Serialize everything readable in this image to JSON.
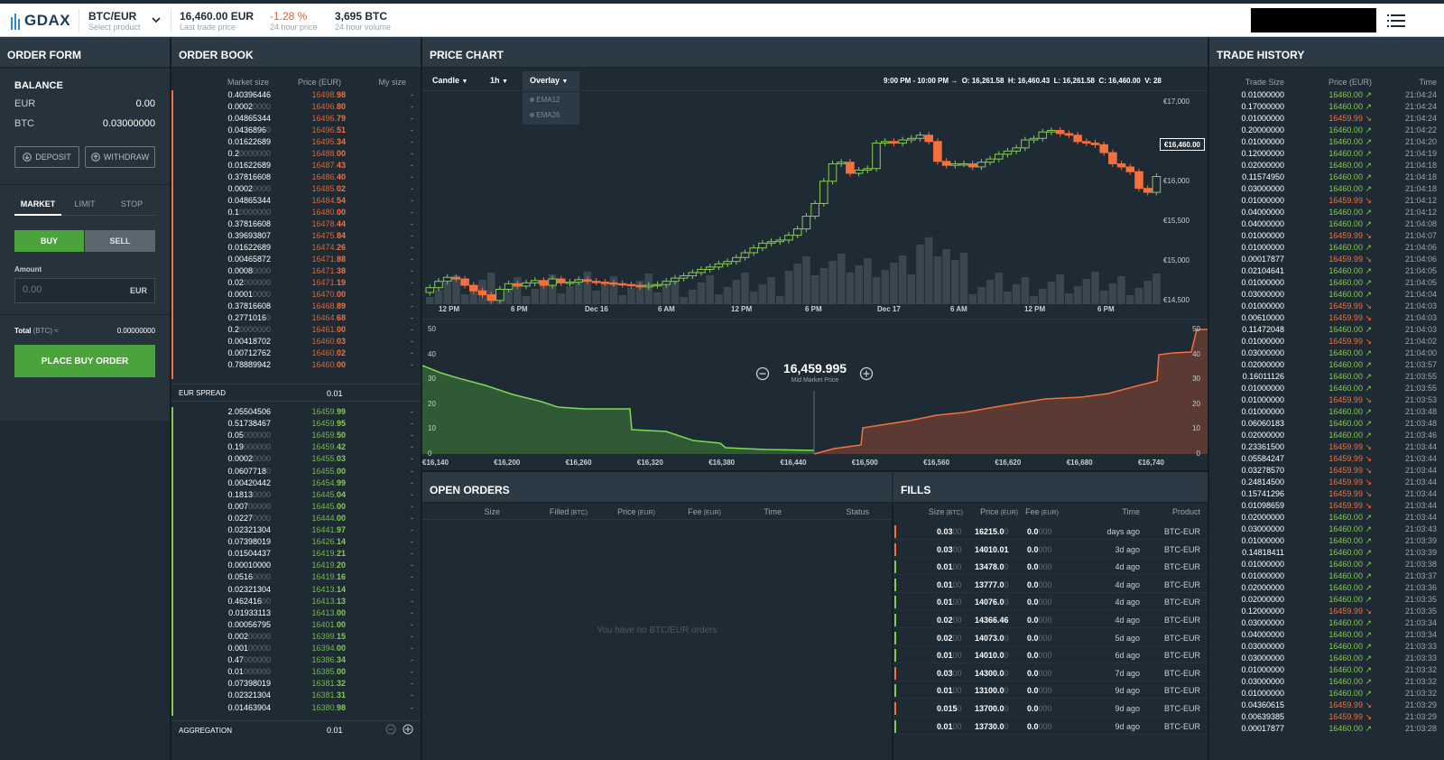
{
  "app": {
    "logo": "GDAX"
  },
  "header": {
    "product": "BTC/EUR",
    "product_sub": "Select product",
    "last_price": "16,460.00 EUR",
    "last_price_sub": "Last trade price",
    "change": "-1.28 %",
    "change_sub": "24 hour price",
    "volume": "3,695 BTC",
    "volume_sub": "24 hour volume"
  },
  "order_form": {
    "title": "ORDER FORM",
    "balance_title": "BALANCE",
    "balances": [
      {
        "cur": "EUR",
        "amt": "0.00"
      },
      {
        "cur": "BTC",
        "amt": "0.03000000"
      }
    ],
    "deposit": "DEPOSIT",
    "withdraw": "WITHDRAW",
    "tabs": [
      "MARKET",
      "LIMIT",
      "STOP"
    ],
    "buy": "BUY",
    "sell": "SELL",
    "amount_label": "Amount",
    "amount_placeholder": "0.00",
    "amount_unit": "EUR",
    "total_label": "Total",
    "total_unit": "(BTC) ≈",
    "total_value": "0.00000000",
    "place": "PLACE BUY ORDER"
  },
  "order_book": {
    "title": "ORDER BOOK",
    "cols": [
      "Market size",
      "Price (EUR)",
      "My size"
    ],
    "asks": [
      [
        "0.40396446",
        "16498.98"
      ],
      [
        "0.0002",
        "16496.80"
      ],
      [
        "0.04865344",
        "16496.79"
      ],
      [
        "0.0436896",
        "16496.51"
      ],
      [
        "0.01622689",
        "16495.34"
      ],
      [
        "0.2",
        "16488.00"
      ],
      [
        "0.01622689",
        "16487.43"
      ],
      [
        "0.37816608",
        "16486.40"
      ],
      [
        "0.0002",
        "16485.02"
      ],
      [
        "0.04865344",
        "16484.54"
      ],
      [
        "0.1",
        "16480.00"
      ],
      [
        "0.37816608",
        "16478.44"
      ],
      [
        "0.39693807",
        "16475.84"
      ],
      [
        "0.01622689",
        "16474.26"
      ],
      [
        "0.00465872",
        "16471.88"
      ],
      [
        "0.0008",
        "16471.38"
      ],
      [
        "0.02",
        "16471.19"
      ],
      [
        "0.0001",
        "16470.00"
      ],
      [
        "0.37816608",
        "16468.89"
      ],
      [
        "0.2771016",
        "16464.68"
      ],
      [
        "0.2",
        "16461.00"
      ],
      [
        "0.00418702",
        "16460.03"
      ],
      [
        "0.00712762",
        "16460.02"
      ],
      [
        "0.78889942",
        "16460.00"
      ]
    ],
    "spread_label": "EUR SPREAD",
    "spread_value": "0.01",
    "bids": [
      [
        "2.05504506",
        "16459.99"
      ],
      [
        "0.51738467",
        "16459.95"
      ],
      [
        "0.05",
        "16459.50"
      ],
      [
        "0.19",
        "16459.42"
      ],
      [
        "0.0002",
        "16455.03"
      ],
      [
        "0.0607718",
        "16455.00"
      ],
      [
        "0.00420442",
        "16454.99"
      ],
      [
        "0.1813",
        "16445.04"
      ],
      [
        "0.007",
        "16445.00"
      ],
      [
        "0.0227",
        "16444.00"
      ],
      [
        "0.02321304",
        "16441.97"
      ],
      [
        "0.07398019",
        "16426.14"
      ],
      [
        "0.01504437",
        "16419.21"
      ],
      [
        "0.00010000",
        "16419.20"
      ],
      [
        "0.0516",
        "16419.16"
      ],
      [
        "0.02321304",
        "16413.14"
      ],
      [
        "0.462416",
        "16413.13"
      ],
      [
        "0.01933113",
        "16413.00"
      ],
      [
        "0.00056795",
        "16401.00"
      ],
      [
        "0.002",
        "16399.15"
      ],
      [
        "0.001",
        "16394.00"
      ],
      [
        "0.47",
        "16386.34"
      ],
      [
        "0.01",
        "16385.00"
      ],
      [
        "0.07398019",
        "16381.32"
      ],
      [
        "0.02321304",
        "16381.31"
      ],
      [
        "0.01463904",
        "16380.98"
      ]
    ],
    "my_size": "-",
    "aggregation_label": "AGGREGATION",
    "aggregation_value": "0.01"
  },
  "price_chart": {
    "title": "PRICE CHART",
    "candle_label": "Candle",
    "interval_label": "1h",
    "overlay_label": "Overlay",
    "overlay_options": [
      "EMA12",
      "EMA26"
    ],
    "ohlc_time": "9:00 PM - 10:00 PM →",
    "ohlc": [
      {
        "k": "O:",
        "v": "16,261.58"
      },
      {
        "k": "H:",
        "v": "16,460.43"
      },
      {
        "k": "L:",
        "v": "16,261.58"
      },
      {
        "k": "C:",
        "v": "16,460.00"
      },
      {
        "k": "V:",
        "v": "28"
      }
    ],
    "price_ticks": [
      "€17,000",
      "€16,000",
      "€15,500",
      "€15,000",
      "€14,500"
    ],
    "price_tag": "€16,460.00",
    "time_ticks": [
      "12 PM",
      "6 PM",
      "Dec 16",
      "6 AM",
      "12 PM",
      "6 PM",
      "Dec 17",
      "6 AM",
      "12 PM",
      "6 PM"
    ],
    "mid_price": "16,459.995",
    "mid_label": "Mid Market Price",
    "depth_left_ticks": [
      "50",
      "40",
      "30",
      "20",
      "10",
      "0"
    ],
    "depth_right_ticks": [
      "50",
      "40",
      "30",
      "20",
      "10",
      "0"
    ],
    "depth_x_ticks": [
      "€16,140",
      "€16,200",
      "€16,260",
      "€16,320",
      "€16,380",
      "€16,440",
      "€16,500",
      "€16,560",
      "€16,620",
      "€16,680",
      "€16,740"
    ]
  },
  "open_orders": {
    "title": "OPEN ORDERS",
    "cols": [
      {
        "t": "Size",
        "u": ""
      },
      {
        "t": "Filled",
        "u": "(BTC)"
      },
      {
        "t": "Price",
        "u": "(EUR)"
      },
      {
        "t": "Fee",
        "u": "(EUR)"
      },
      {
        "t": "Time",
        "u": ""
      },
      {
        "t": "Status",
        "u": ""
      }
    ],
    "empty": "You have no BTC/EUR orders"
  },
  "fills": {
    "title": "FILLS",
    "cols": [
      {
        "t": "Size",
        "u": "(BTC)"
      },
      {
        "t": "Price",
        "u": "(EUR)"
      },
      {
        "t": "Fee",
        "u": "(EUR)"
      },
      {
        "t": "Time",
        "u": ""
      },
      {
        "t": "Product",
        "u": ""
      }
    ],
    "rows": [
      {
        "side": "sell",
        "size": "0.03",
        "size_pad": "00",
        "price": "16215.0",
        "price_pad": "0",
        "fee": "0.0",
        "fee_pad": "000",
        "time": "days ago",
        "product": "BTC-EUR"
      },
      {
        "side": "sell",
        "size": "0.03",
        "size_pad": "00",
        "price": "14010.01",
        "price_pad": "",
        "fee": "0.0",
        "fee_pad": "000",
        "time": "3d ago",
        "product": "BTC-EUR"
      },
      {
        "side": "buy",
        "size": "0.01",
        "size_pad": "00",
        "price": "13478.0",
        "price_pad": "0",
        "fee": "0.0",
        "fee_pad": "000",
        "time": "4d ago",
        "product": "BTC-EUR"
      },
      {
        "side": "buy",
        "size": "0.01",
        "size_pad": "00",
        "price": "13777.0",
        "price_pad": "0",
        "fee": "0.0",
        "fee_pad": "000",
        "time": "4d ago",
        "product": "BTC-EUR"
      },
      {
        "side": "buy",
        "size": "0.01",
        "size_pad": "00",
        "price": "14076.0",
        "price_pad": "0",
        "fee": "0.0",
        "fee_pad": "000",
        "time": "4d ago",
        "product": "BTC-EUR"
      },
      {
        "side": "buy",
        "size": "0.02",
        "size_pad": "00",
        "price": "14366.46",
        "price_pad": "",
        "fee": "0.0",
        "fee_pad": "000",
        "time": "4d ago",
        "product": "BTC-EUR"
      },
      {
        "side": "buy",
        "size": "0.02",
        "size_pad": "00",
        "price": "14073.0",
        "price_pad": "0",
        "fee": "0.0",
        "fee_pad": "000",
        "time": "5d ago",
        "product": "BTC-EUR"
      },
      {
        "side": "buy",
        "size": "0.01",
        "size_pad": "00",
        "price": "14010.0",
        "price_pad": "0",
        "fee": "0.0",
        "fee_pad": "000",
        "time": "6d ago",
        "product": "BTC-EUR"
      },
      {
        "side": "sell",
        "size": "0.03",
        "size_pad": "00",
        "price": "14300.0",
        "price_pad": "0",
        "fee": "0.0",
        "fee_pad": "000",
        "time": "7d ago",
        "product": "BTC-EUR"
      },
      {
        "side": "buy",
        "size": "0.01",
        "size_pad": "00",
        "price": "13100.0",
        "price_pad": "0",
        "fee": "0.0",
        "fee_pad": "000",
        "time": "9d ago",
        "product": "BTC-EUR"
      },
      {
        "side": "sell",
        "size": "0.015",
        "size_pad": "0",
        "price": "13700.0",
        "price_pad": "0",
        "fee": "0.0",
        "fee_pad": "000",
        "time": "9d ago",
        "product": "BTC-EUR"
      },
      {
        "side": "buy",
        "size": "0.01",
        "size_pad": "00",
        "price": "13730.0",
        "price_pad": "0",
        "fee": "0.0",
        "fee_pad": "000",
        "time": "9d ago",
        "product": "BTC-EUR"
      }
    ]
  },
  "trade_history": {
    "title": "TRADE HISTORY",
    "cols": [
      "Trade Size",
      "Price (EUR)",
      "Time"
    ],
    "rows": [
      [
        "0.01000000",
        "16460.00",
        "up",
        "21:04:24"
      ],
      [
        "0.17000000",
        "16460.00",
        "up",
        "21:04:24"
      ],
      [
        "0.01000000",
        "16459.99",
        "down",
        "21:04:24"
      ],
      [
        "0.20000000",
        "16460.00",
        "up",
        "21:04:22"
      ],
      [
        "0.01000000",
        "16460.00",
        "up",
        "21:04:20"
      ],
      [
        "0.12000000",
        "16460.00",
        "up",
        "21:04:19"
      ],
      [
        "0.02000000",
        "16460.00",
        "up",
        "21:04:18"
      ],
      [
        "0.11574950",
        "16460.00",
        "up",
        "21:04:18"
      ],
      [
        "0.03000000",
        "16460.00",
        "up",
        "21:04:18"
      ],
      [
        "0.01000000",
        "16459.99",
        "down",
        "21:04:12"
      ],
      [
        "0.04000000",
        "16460.00",
        "up",
        "21:04:12"
      ],
      [
        "0.04000000",
        "16460.00",
        "up",
        "21:04:08"
      ],
      [
        "0.01000000",
        "16459.99",
        "down",
        "21:04:07"
      ],
      [
        "0.01000000",
        "16460.00",
        "up",
        "21:04:06"
      ],
      [
        "0.00017877",
        "16459.99",
        "down",
        "21:04:06"
      ],
      [
        "0.02104641",
        "16460.00",
        "up",
        "21:04:05"
      ],
      [
        "0.01000000",
        "16460.00",
        "up",
        "21:04:05"
      ],
      [
        "0.03000000",
        "16460.00",
        "up",
        "21:04:04"
      ],
      [
        "0.01000000",
        "16459.99",
        "down",
        "21:04:03"
      ],
      [
        "0.00610000",
        "16459.99",
        "down",
        "21:04:03"
      ],
      [
        "0.11472048",
        "16460.00",
        "up",
        "21:04:03"
      ],
      [
        "0.01000000",
        "16459.99",
        "down",
        "21:04:02"
      ],
      [
        "0.03000000",
        "16460.00",
        "up",
        "21:04:00"
      ],
      [
        "0.02000000",
        "16460.00",
        "up",
        "21:03:57"
      ],
      [
        "0.16011126",
        "16460.00",
        "up",
        "21:03:55"
      ],
      [
        "0.01000000",
        "16460.00",
        "up",
        "21:03:55"
      ],
      [
        "0.01000000",
        "16459.99",
        "down",
        "21:03:53"
      ],
      [
        "0.01000000",
        "16460.00",
        "up",
        "21:03:48"
      ],
      [
        "0.06060183",
        "16460.00",
        "up",
        "21:03:48"
      ],
      [
        "0.02000000",
        "16460.00",
        "up",
        "21:03:46"
      ],
      [
        "0.23361500",
        "16459.99",
        "down",
        "21:03:44"
      ],
      [
        "0.05584247",
        "16459.99",
        "down",
        "21:03:44"
      ],
      [
        "0.03278570",
        "16459.99",
        "down",
        "21:03:44"
      ],
      [
        "0.24814500",
        "16459.99",
        "down",
        "21:03:44"
      ],
      [
        "0.15741296",
        "16459.99",
        "down",
        "21:03:44"
      ],
      [
        "0.01098659",
        "16459.99",
        "down",
        "21:03:44"
      ],
      [
        "0.02000000",
        "16460.00",
        "up",
        "21:03:44"
      ],
      [
        "0.03000000",
        "16460.00",
        "up",
        "21:03:43"
      ],
      [
        "0.01000000",
        "16460.00",
        "up",
        "21:03:39"
      ],
      [
        "0.14818411",
        "16460.00",
        "up",
        "21:03:39"
      ],
      [
        "0.01000000",
        "16460.00",
        "up",
        "21:03:38"
      ],
      [
        "0.01000000",
        "16460.00",
        "up",
        "21:03:37"
      ],
      [
        "0.02000000",
        "16460.00",
        "up",
        "21:03:36"
      ],
      [
        "0.02000000",
        "16460.00",
        "up",
        "21:03:35"
      ],
      [
        "0.12000000",
        "16459.99",
        "down",
        "21:03:35"
      ],
      [
        "0.03000000",
        "16460.00",
        "up",
        "21:03:34"
      ],
      [
        "0.04000000",
        "16460.00",
        "up",
        "21:03:34"
      ],
      [
        "0.03000000",
        "16460.00",
        "up",
        "21:03:33"
      ],
      [
        "0.03000000",
        "16460.00",
        "up",
        "21:03:33"
      ],
      [
        "0.01000000",
        "16460.00",
        "up",
        "21:03:32"
      ],
      [
        "0.03000000",
        "16460.00",
        "up",
        "21:03:32"
      ],
      [
        "0.01000000",
        "16460.00",
        "up",
        "21:03:32"
      ],
      [
        "0.04360615",
        "16459.99",
        "down",
        "21:03:29"
      ],
      [
        "0.00639385",
        "16459.99",
        "down",
        "21:03:29"
      ],
      [
        "0.00017877",
        "16460.00",
        "up",
        "21:03:28"
      ]
    ]
  }
}
